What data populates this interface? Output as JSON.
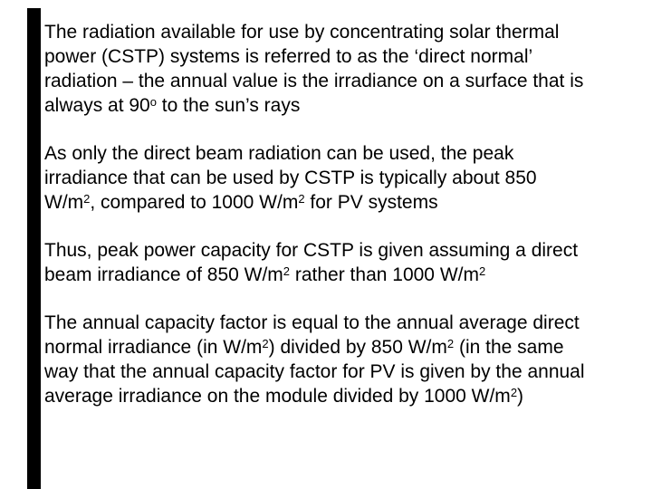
{
  "slide": {
    "type": "presentation-slide",
    "background_color": "#ffffff",
    "text_color": "#000000",
    "edge_bar_color": "#000000"
  },
  "paragraphs": [
    {
      "lines": [
        [
          {
            "t": "The radiation available for use by concentrating solar thermal"
          }
        ],
        [
          {
            "t": "power (CSTP) systems is referred to as the ‘direct normal’"
          }
        ],
        [
          {
            "t": "radiation – the annual value is the irradiance on a surface that is"
          }
        ],
        [
          {
            "t": "always at 90"
          },
          {
            "t": "o",
            "sup": true
          },
          {
            "t": " to the sun’s rays"
          }
        ]
      ]
    },
    {
      "lines": [
        [
          {
            "t": "As only the direct beam radiation can be used, the peak"
          }
        ],
        [
          {
            "t": "irradiance that can be used by CSTP is typically about 850"
          }
        ],
        [
          {
            "t": "W/m"
          },
          {
            "t": "2",
            "sup": true
          },
          {
            "t": ", compared to 1000 W/m"
          },
          {
            "t": "2",
            "sup": true
          },
          {
            "t": " for PV systems"
          }
        ]
      ]
    },
    {
      "lines": [
        [
          {
            "t": "Thus, peak power capacity for CSTP is given assuming a direct"
          }
        ],
        [
          {
            "t": "beam irradiance of 850 W/m"
          },
          {
            "t": "2",
            "sup": true
          },
          {
            "t": " rather than 1000 W/m"
          },
          {
            "t": "2",
            "sup": true
          }
        ]
      ]
    },
    {
      "lines": [
        [
          {
            "t": "The annual capacity factor is equal to the annual average direct"
          }
        ],
        [
          {
            "t": "normal irradiance (in W/m"
          },
          {
            "t": "2",
            "sup": true
          },
          {
            "t": ") divided by 850 W/m"
          },
          {
            "t": "2",
            "sup": true
          },
          {
            "t": " (in the same"
          }
        ],
        [
          {
            "t": "way that the annual capacity factor for PV is given by the annual"
          }
        ],
        [
          {
            "t": "average irradiance on the module divided by 1000 W/m"
          },
          {
            "t": "2",
            "sup": true
          },
          {
            "t": ")"
          }
        ]
      ]
    }
  ]
}
